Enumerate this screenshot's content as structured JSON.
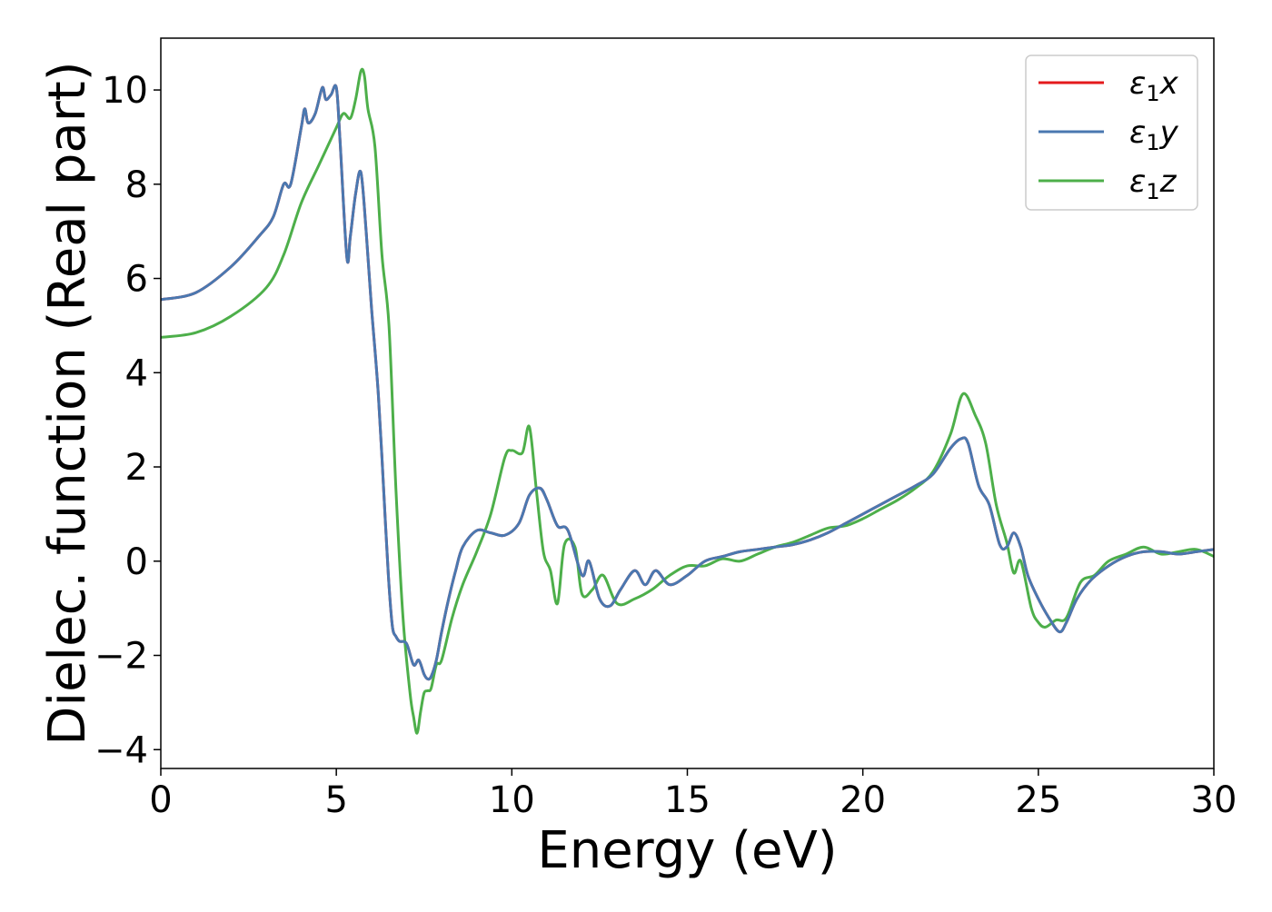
{
  "chart_data": {
    "type": "line",
    "xlabel": "Energy (eV)",
    "ylabel": "Dielec. function (Real part)",
    "xlim": [
      0,
      30
    ],
    "ylim": [
      -4.4,
      11.1
    ],
    "xticks": [
      0,
      5,
      10,
      15,
      20,
      25,
      30
    ],
    "yticks": [
      -4,
      -2,
      0,
      2,
      4,
      6,
      8,
      10
    ],
    "xtick_labels": [
      "0",
      "5",
      "10",
      "15",
      "20",
      "25",
      "30"
    ],
    "ytick_labels": [
      "−4",
      "−2",
      "0",
      "2",
      "4",
      "6",
      "8",
      "10"
    ],
    "grid": false,
    "legend_position": "top-right",
    "series": [
      {
        "name": "ε1x",
        "symbol": "ε",
        "subscript": "1",
        "axis": "x",
        "color": "#e41a1c",
        "x": [
          0,
          1,
          2,
          2.8,
          3.2,
          3.5,
          3.7,
          4.0,
          4.1,
          4.2,
          4.4,
          4.6,
          4.7,
          4.85,
          5.0,
          5.1,
          5.3,
          5.4,
          5.55,
          5.7,
          5.85,
          6.0,
          6.2,
          6.4,
          6.5,
          6.6,
          6.7,
          6.8,
          7.0,
          7.2,
          7.35,
          7.5,
          7.6,
          7.7,
          7.85,
          8.0,
          8.2,
          8.4,
          8.6,
          9.0,
          9.4,
          9.8,
          10.2,
          10.5,
          10.8,
          11.0,
          11.3,
          11.6,
          12.0,
          12.2,
          12.5,
          12.8,
          13.1,
          13.5,
          13.8,
          14.1,
          14.5,
          15.0,
          15.5,
          16.0,
          16.5,
          17.0,
          17.5,
          18.0,
          18.5,
          19.0,
          19.5,
          20.0,
          20.5,
          21.0,
          21.5,
          22.0,
          22.5,
          22.8,
          23.0,
          23.3,
          23.6,
          23.9,
          24.1,
          24.3,
          24.5,
          24.7,
          25.0,
          25.3,
          25.6,
          25.8,
          26.1,
          26.5,
          27.0,
          27.5,
          28.0,
          28.5,
          29.0,
          29.5,
          30.0
        ],
        "y": [
          5.55,
          5.7,
          6.25,
          6.9,
          7.3,
          8.0,
          8.0,
          9.2,
          9.6,
          9.3,
          9.5,
          10.05,
          9.8,
          9.9,
          10.05,
          9.0,
          6.45,
          6.9,
          7.8,
          8.25,
          7.0,
          5.4,
          3.5,
          0.8,
          -0.5,
          -1.4,
          -1.6,
          -1.7,
          -1.75,
          -2.2,
          -2.1,
          -2.4,
          -2.5,
          -2.45,
          -2.1,
          -1.5,
          -0.8,
          -0.2,
          0.3,
          0.65,
          0.6,
          0.55,
          0.8,
          1.4,
          1.55,
          1.3,
          0.75,
          0.65,
          -0.3,
          0.0,
          -0.8,
          -0.95,
          -0.6,
          -0.2,
          -0.5,
          -0.2,
          -0.5,
          -0.3,
          0.0,
          0.1,
          0.2,
          0.25,
          0.3,
          0.35,
          0.45,
          0.6,
          0.8,
          1.0,
          1.2,
          1.4,
          1.6,
          1.85,
          2.4,
          2.6,
          2.5,
          1.6,
          1.2,
          0.35,
          0.3,
          0.6,
          0.3,
          -0.3,
          -0.8,
          -1.2,
          -1.5,
          -1.3,
          -0.8,
          -0.4,
          -0.1,
          0.1,
          0.2,
          0.2,
          0.15,
          0.2,
          0.25
        ]
      },
      {
        "name": "ε1y",
        "symbol": "ε",
        "subscript": "1",
        "axis": "y",
        "color": "#4a78b0",
        "x": [
          0,
          1,
          2,
          2.8,
          3.2,
          3.5,
          3.7,
          4.0,
          4.1,
          4.2,
          4.4,
          4.6,
          4.7,
          4.85,
          5.0,
          5.1,
          5.3,
          5.4,
          5.55,
          5.7,
          5.85,
          6.0,
          6.2,
          6.4,
          6.5,
          6.6,
          6.7,
          6.8,
          7.0,
          7.2,
          7.35,
          7.5,
          7.6,
          7.7,
          7.85,
          8.0,
          8.2,
          8.4,
          8.6,
          9.0,
          9.4,
          9.8,
          10.2,
          10.5,
          10.8,
          11.0,
          11.3,
          11.6,
          12.0,
          12.2,
          12.5,
          12.8,
          13.1,
          13.5,
          13.8,
          14.1,
          14.5,
          15.0,
          15.5,
          16.0,
          16.5,
          17.0,
          17.5,
          18.0,
          18.5,
          19.0,
          19.5,
          20.0,
          20.5,
          21.0,
          21.5,
          22.0,
          22.5,
          22.8,
          23.0,
          23.3,
          23.6,
          23.9,
          24.1,
          24.3,
          24.5,
          24.7,
          25.0,
          25.3,
          25.6,
          25.8,
          26.1,
          26.5,
          27.0,
          27.5,
          28.0,
          28.5,
          29.0,
          29.5,
          30.0
        ],
        "y": [
          5.55,
          5.7,
          6.25,
          6.9,
          7.3,
          8.0,
          8.0,
          9.2,
          9.6,
          9.3,
          9.5,
          10.05,
          9.8,
          9.9,
          10.05,
          9.0,
          6.45,
          6.9,
          7.8,
          8.25,
          7.0,
          5.4,
          3.5,
          0.8,
          -0.5,
          -1.4,
          -1.6,
          -1.7,
          -1.75,
          -2.2,
          -2.1,
          -2.4,
          -2.5,
          -2.45,
          -2.1,
          -1.5,
          -0.8,
          -0.2,
          0.3,
          0.65,
          0.6,
          0.55,
          0.8,
          1.4,
          1.55,
          1.3,
          0.75,
          0.65,
          -0.3,
          0.0,
          -0.8,
          -0.95,
          -0.6,
          -0.2,
          -0.5,
          -0.2,
          -0.5,
          -0.3,
          0.0,
          0.1,
          0.2,
          0.25,
          0.3,
          0.35,
          0.45,
          0.6,
          0.8,
          1.0,
          1.2,
          1.4,
          1.6,
          1.85,
          2.4,
          2.6,
          2.5,
          1.6,
          1.2,
          0.35,
          0.3,
          0.6,
          0.3,
          -0.3,
          -0.8,
          -1.2,
          -1.5,
          -1.3,
          -0.8,
          -0.4,
          -0.1,
          0.1,
          0.2,
          0.2,
          0.15,
          0.2,
          0.25
        ]
      },
      {
        "name": "ε1z",
        "symbol": "ε",
        "subscript": "1",
        "axis": "z",
        "color": "#4daf4a",
        "x": [
          0,
          1,
          2,
          3,
          3.5,
          4.0,
          4.5,
          5.0,
          5.2,
          5.4,
          5.55,
          5.7,
          5.8,
          5.9,
          6.1,
          6.3,
          6.5,
          6.7,
          6.9,
          7.1,
          7.2,
          7.3,
          7.4,
          7.5,
          7.6,
          7.7,
          7.85,
          8.0,
          8.3,
          8.6,
          9.0,
          9.4,
          9.8,
          10.0,
          10.3,
          10.5,
          10.7,
          10.9,
          11.1,
          11.3,
          11.5,
          11.8,
          12.0,
          12.3,
          12.6,
          13.0,
          13.5,
          14.0,
          14.5,
          15.0,
          15.5,
          16.0,
          16.5,
          17.0,
          17.5,
          18.0,
          18.5,
          19.0,
          19.5,
          20.0,
          20.5,
          21.0,
          21.5,
          22.0,
          22.5,
          22.85,
          23.2,
          23.5,
          23.8,
          24.1,
          24.3,
          24.5,
          24.8,
          25.0,
          25.2,
          25.5,
          25.8,
          26.2,
          26.6,
          27.0,
          27.5,
          28.0,
          28.5,
          29.0,
          29.5,
          30.0
        ],
        "y": [
          4.75,
          4.85,
          5.2,
          5.8,
          6.5,
          7.6,
          8.4,
          9.2,
          9.5,
          9.4,
          9.8,
          10.4,
          10.3,
          9.6,
          8.8,
          6.5,
          5.0,
          1.5,
          -1.2,
          -2.8,
          -3.3,
          -3.65,
          -3.2,
          -2.8,
          -2.75,
          -2.7,
          -2.2,
          -2.1,
          -1.2,
          -0.5,
          0.2,
          1.0,
          2.2,
          2.35,
          2.3,
          2.85,
          1.5,
          0.2,
          -0.2,
          -0.9,
          0.35,
          0.3,
          -0.7,
          -0.6,
          -0.3,
          -0.9,
          -0.8,
          -0.6,
          -0.3,
          -0.1,
          -0.1,
          0.05,
          0.0,
          0.15,
          0.3,
          0.4,
          0.55,
          0.7,
          0.75,
          0.9,
          1.1,
          1.3,
          1.55,
          1.9,
          2.7,
          3.55,
          3.1,
          2.5,
          1.2,
          0.4,
          -0.25,
          0.0,
          -1.0,
          -1.3,
          -1.4,
          -1.25,
          -1.2,
          -0.45,
          -0.3,
          0.0,
          0.15,
          0.3,
          0.15,
          0.2,
          0.25,
          0.1
        ]
      }
    ]
  }
}
